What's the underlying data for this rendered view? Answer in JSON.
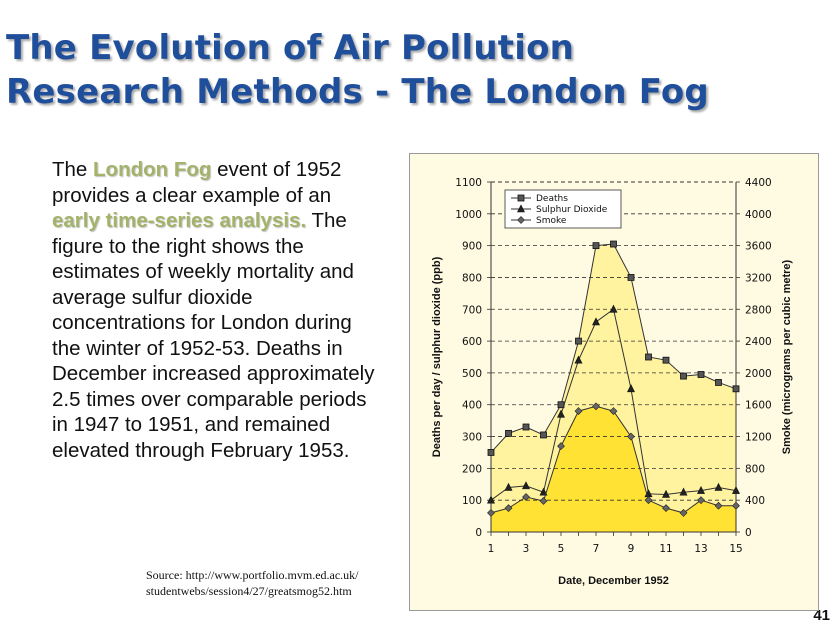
{
  "slide": {
    "title_line1": "The Evolution of Air Pollution",
    "title_line2": "Research Methods - The London Fog",
    "body": {
      "p1": "The ",
      "h1": "London Fog",
      "p2": " event of 1952 provides a clear example of an ",
      "h2": "early time-series analysis.",
      "p3": "  The figure to the right shows the estimates of weekly mortality and average sulfur dioxide concentrations for London during the winter of 1952-53.  Deaths in December increased approximately 2.5 times over comparable periods in 1947 to 1951, and remained elevated through February 1953."
    },
    "source_line1": "Source: http://www.portfolio.mvm.ed.ac.uk/",
    "source_line2": "studentwebs/session4/27/greatsmog52.htm",
    "page_number": "41",
    "colors": {
      "title": "#1f4e9a",
      "highlight": "#a3b36a",
      "chart_background": "#fffbe3",
      "deaths_fill": "#fff3a0",
      "smoke_fill": "#ffe233"
    }
  },
  "chart_data": {
    "type": "line",
    "title": "",
    "xlabel": "Date, December 1952",
    "ylabel": "Deaths per day / sulphur dioxide (ppb)",
    "y2label": "Smoke (micrograms per cubic metre)",
    "x": [
      1,
      2,
      3,
      4,
      5,
      6,
      7,
      8,
      9,
      10,
      11,
      12,
      13,
      14,
      15
    ],
    "xticks": [
      "1",
      "3",
      "5",
      "7",
      "9",
      "11",
      "13",
      "15"
    ],
    "xlim": [
      1,
      15
    ],
    "ylim": [
      0,
      1100
    ],
    "y2lim": [
      0,
      4400
    ],
    "yticks": [
      "0",
      "100",
      "200",
      "300",
      "400",
      "500",
      "600",
      "700",
      "800",
      "900",
      "1000",
      "1100"
    ],
    "y2ticks": [
      "0",
      "400",
      "800",
      "1200",
      "1600",
      "2000",
      "2400",
      "2800",
      "3200",
      "3600",
      "4000",
      "4400"
    ],
    "grid": "horizontal dashed",
    "legend_position": "top-left",
    "series": [
      {
        "name": "Deaths",
        "axis": "left",
        "marker": "square",
        "fill": "area",
        "values": [
          250,
          310,
          330,
          305,
          400,
          600,
          900,
          905,
          800,
          550,
          540,
          490,
          495,
          470,
          450
        ]
      },
      {
        "name": "Sulphur Dioxide",
        "axis": "left",
        "marker": "triangle",
        "values": [
          100,
          140,
          145,
          125,
          370,
          540,
          660,
          700,
          450,
          120,
          118,
          125,
          130,
          140,
          130
        ]
      },
      {
        "name": "Smoke",
        "axis": "right",
        "marker": "diamond",
        "fill": "area",
        "values": [
          240,
          300,
          440,
          390,
          1080,
          1520,
          1580,
          1520,
          1200,
          400,
          300,
          240,
          400,
          330,
          330
        ]
      }
    ]
  }
}
